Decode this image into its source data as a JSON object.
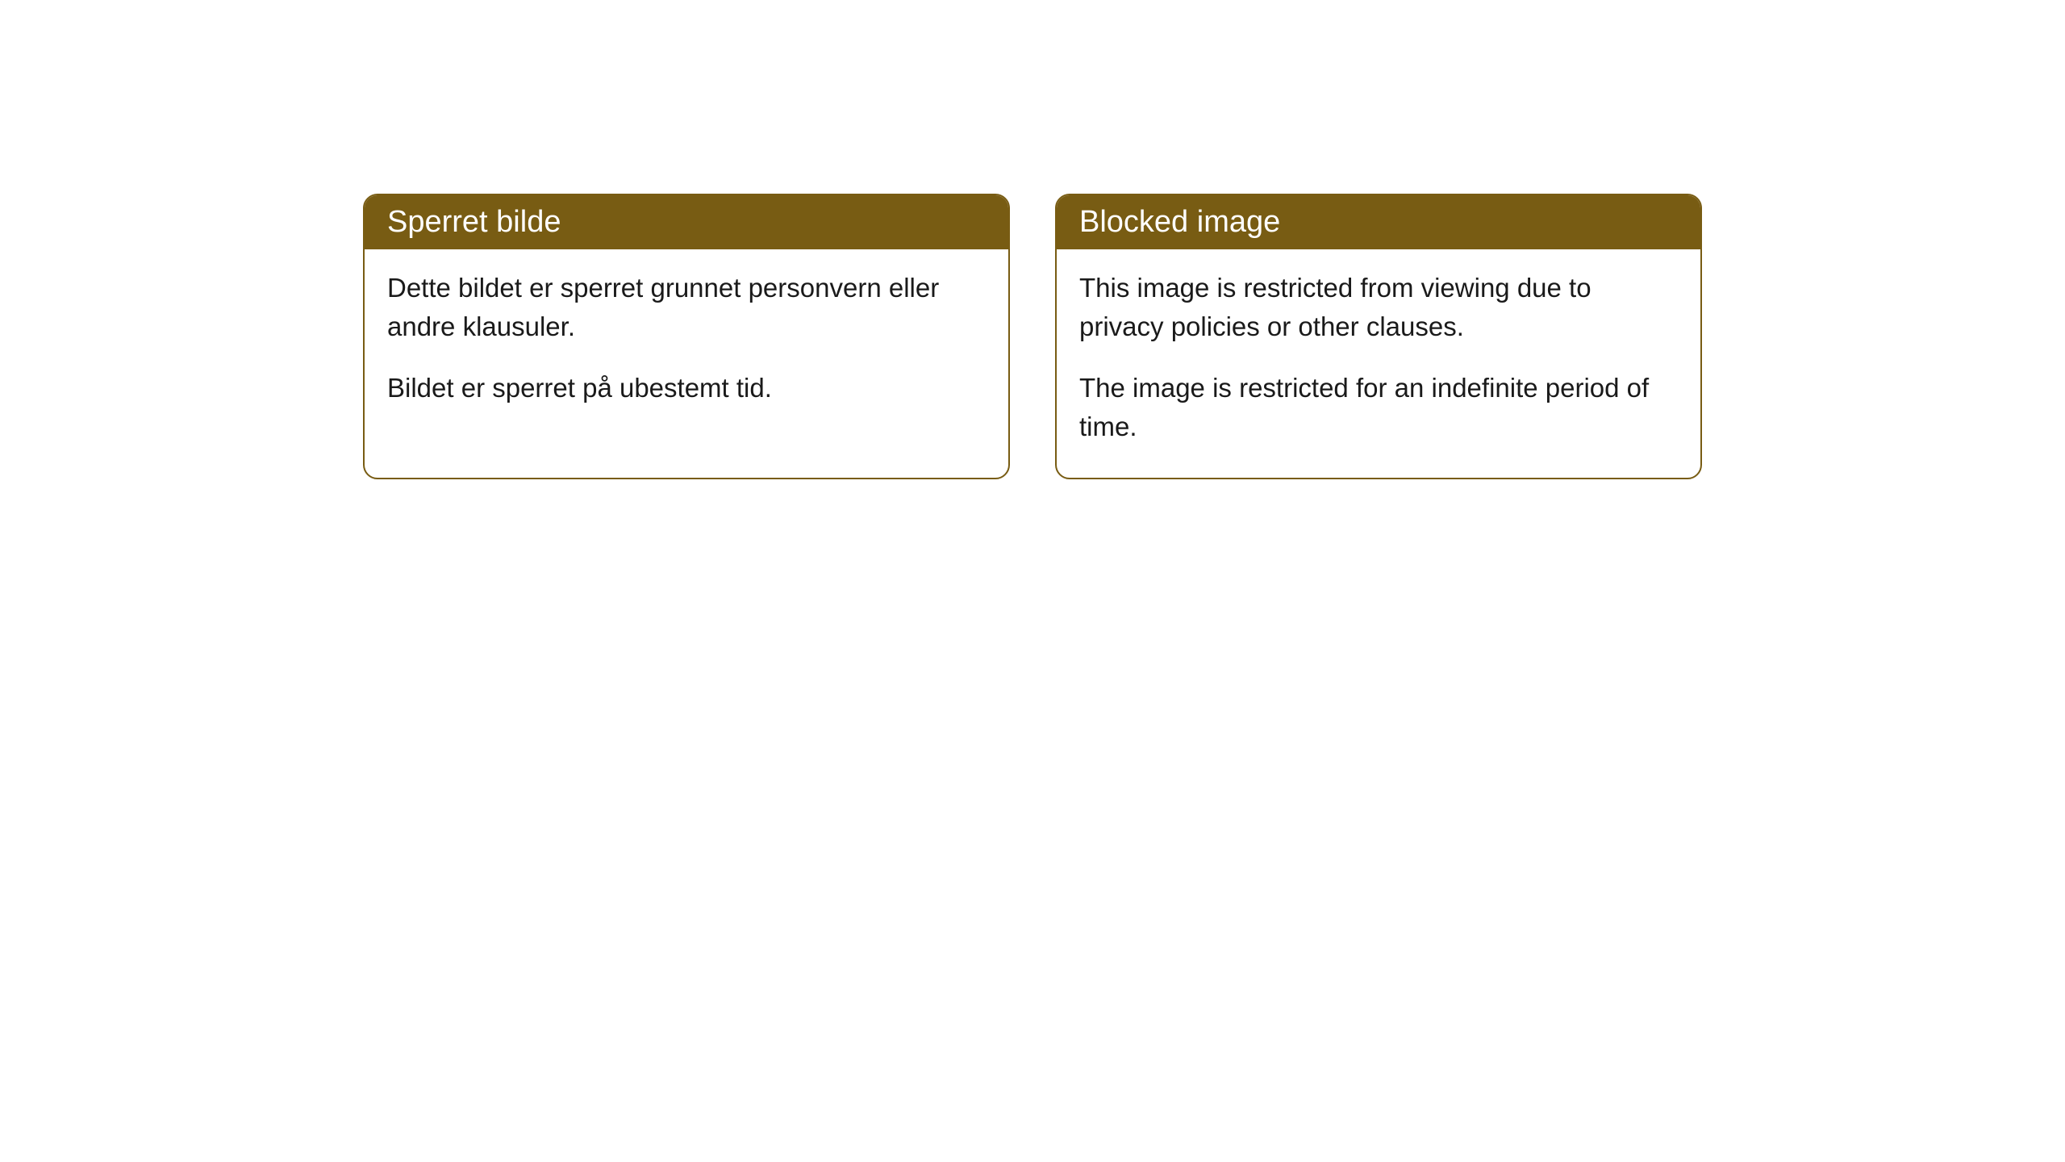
{
  "cards": [
    {
      "title": "Sperret bilde",
      "paragraph1": "Dette bildet er sperret grunnet personvern eller andre klausuler.",
      "paragraph2": "Bildet er sperret på ubestemt tid."
    },
    {
      "title": "Blocked image",
      "paragraph1": "This image is restricted from viewing due to privacy policies or other clauses.",
      "paragraph2": "The image is restricted for an indefinite period of time."
    }
  ],
  "styling": {
    "header_background": "#785c13",
    "header_text_color": "#ffffff",
    "border_color": "#785c13",
    "body_background": "#ffffff",
    "body_text_color": "#1a1a1a",
    "border_radius": 18,
    "header_fontsize": 38,
    "body_fontsize": 33
  }
}
